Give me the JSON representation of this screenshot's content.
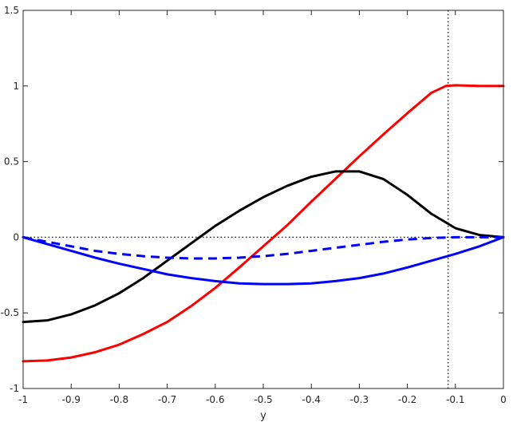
{
  "chart_data": {
    "type": "line",
    "title": "",
    "xlabel": "y",
    "ylabel": "",
    "xlim": [
      -1,
      0
    ],
    "ylim": [
      -1,
      1.5
    ],
    "x_ticks": [
      -1,
      -0.9,
      -0.8,
      -0.7,
      -0.6,
      -0.5,
      -0.4,
      -0.3,
      -0.2,
      -0.1,
      0
    ],
    "x_tick_labels": [
      "-1",
      "-0.9",
      "-0.8",
      "-0.7",
      "-0.6",
      "-0.5",
      "-0.4",
      "-0.3",
      "-0.2",
      "-0.1",
      "0"
    ],
    "y_ticks": [
      -1,
      -0.5,
      0,
      0.5,
      1,
      1.5
    ],
    "y_tick_labels": [
      "-1",
      "-0.5",
      "0",
      "0.5",
      "1",
      "1.5"
    ],
    "grid": false,
    "legend": "none",
    "reference_lines": [
      {
        "orientation": "horizontal",
        "value": 0,
        "color": "#000000",
        "style": "dotted"
      },
      {
        "orientation": "vertical",
        "value": -0.115,
        "color": "#000000",
        "style": "dotted"
      }
    ],
    "series": [
      {
        "color": "#ff0000",
        "style": "solid",
        "x": [
          -1,
          -0.95,
          -0.9,
          -0.85,
          -0.8,
          -0.75,
          -0.7,
          -0.65,
          -0.6,
          -0.55,
          -0.5,
          -0.45,
          -0.4,
          -0.35,
          -0.3,
          -0.25,
          -0.2,
          -0.15,
          -0.12,
          -0.1,
          -0.05,
          0
        ],
        "y": [
          -0.82,
          -0.815,
          -0.795,
          -0.76,
          -0.71,
          -0.64,
          -0.56,
          -0.455,
          -0.335,
          -0.2,
          -0.06,
          0.08,
          0.235,
          0.385,
          0.535,
          0.68,
          0.82,
          0.955,
          1.0,
          1.005,
          1.0,
          1.0
        ]
      },
      {
        "color": "#000000",
        "style": "solid",
        "x": [
          -1,
          -0.95,
          -0.9,
          -0.85,
          -0.8,
          -0.75,
          -0.7,
          -0.65,
          -0.6,
          -0.55,
          -0.5,
          -0.45,
          -0.4,
          -0.35,
          -0.3,
          -0.25,
          -0.2,
          -0.15,
          -0.1,
          -0.05,
          0
        ],
        "y": [
          -0.56,
          -0.55,
          -0.51,
          -0.45,
          -0.37,
          -0.27,
          -0.155,
          -0.04,
          0.075,
          0.175,
          0.265,
          0.34,
          0.4,
          0.435,
          0.435,
          0.385,
          0.28,
          0.155,
          0.06,
          0.015,
          0
        ]
      },
      {
        "color": "#0000ff",
        "style": "solid",
        "x": [
          -1,
          -0.95,
          -0.9,
          -0.85,
          -0.8,
          -0.75,
          -0.7,
          -0.65,
          -0.6,
          -0.55,
          -0.5,
          -0.45,
          -0.4,
          -0.35,
          -0.3,
          -0.25,
          -0.2,
          -0.15,
          -0.1,
          -0.05,
          0
        ],
        "y": [
          0,
          -0.045,
          -0.09,
          -0.135,
          -0.175,
          -0.21,
          -0.245,
          -0.27,
          -0.29,
          -0.305,
          -0.31,
          -0.31,
          -0.305,
          -0.29,
          -0.27,
          -0.24,
          -0.2,
          -0.155,
          -0.11,
          -0.06,
          0
        ]
      },
      {
        "color": "#0000ff",
        "style": "dashed",
        "x": [
          -1,
          -0.95,
          -0.9,
          -0.85,
          -0.8,
          -0.75,
          -0.7,
          -0.65,
          -0.6,
          -0.55,
          -0.5,
          -0.45,
          -0.4,
          -0.35,
          -0.3,
          -0.25,
          -0.2,
          -0.15,
          -0.1,
          -0.05,
          0
        ],
        "y": [
          0,
          -0.03,
          -0.06,
          -0.09,
          -0.11,
          -0.125,
          -0.135,
          -0.14,
          -0.14,
          -0.135,
          -0.125,
          -0.11,
          -0.09,
          -0.07,
          -0.05,
          -0.03,
          -0.015,
          -0.005,
          0,
          0,
          0
        ]
      }
    ]
  }
}
